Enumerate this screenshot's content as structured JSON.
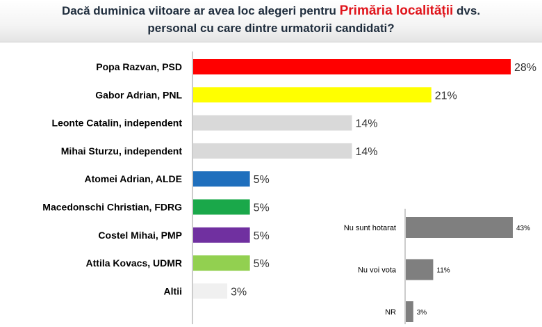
{
  "header": {
    "title_pre": "Dacă duminica viitoare ar avea loc alegeri pentru ",
    "title_highlight": "Primăria localității",
    "title_post": " dvs.",
    "title_line2": "personal cu care dintre urmatorii candidati?"
  },
  "colors": {
    "highlight": "#e0141b",
    "header_bg": "#ececec"
  },
  "chart_data": [
    {
      "type": "bar",
      "orientation": "horizontal",
      "categories": [
        "Popa Razvan, PSD",
        "Gabor Adrian, PNL",
        "Leonte Catalin, independent",
        "Mihai Sturzu, independent",
        "Atomei Adrian, ALDE",
        "Macedonschi Christian, FDRG",
        "Costel Mihai, PMP",
        "Attila Kovacs, UDMR",
        "Altii"
      ],
      "values": [
        28,
        21,
        14,
        14,
        5,
        5,
        5,
        5,
        3
      ],
      "value_labels": [
        "28%",
        "21%",
        "14%",
        "14%",
        "5%",
        "5%",
        "5%",
        "5%",
        "3%"
      ],
      "colors": [
        "#ff0000",
        "#ffff00",
        "#d9d9d9",
        "#d9d9d9",
        "#1f6fbd",
        "#1aa84a",
        "#7030a0",
        "#92d050",
        "#f0f0f0"
      ],
      "xlim": [
        0,
        28
      ],
      "grid": false
    },
    {
      "type": "bar",
      "orientation": "horizontal",
      "categories": [
        "Nu sunt hotarat",
        "Nu voi vota",
        "NR"
      ],
      "values": [
        43,
        11,
        3
      ],
      "value_labels": [
        "43%",
        "11%",
        "3%"
      ],
      "colors": [
        "#7f7f7f",
        "#7f7f7f",
        "#7f7f7f"
      ],
      "xlim": [
        0,
        43
      ],
      "grid": false
    }
  ]
}
